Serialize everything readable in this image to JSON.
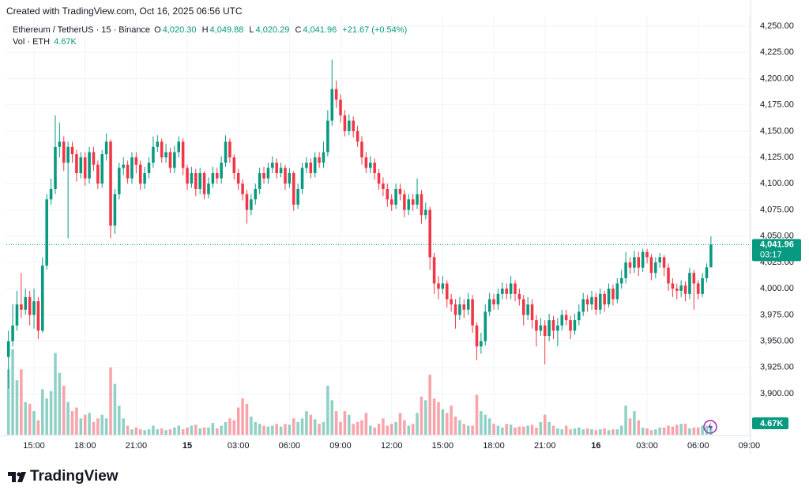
{
  "header": {
    "created": "Created with TradingView.com, Oct 16, 2025 06:56 UTC",
    "symbol": "Ethereum / TetherUS · 15 · Binance",
    "ohlc_keys": [
      "O",
      "H",
      "L",
      "C"
    ],
    "change": "+21.67 (+0.54%)",
    "volume_title": "Vol · ETH"
  },
  "chart_data": {
    "type": "candlestick",
    "up_color": "#089981",
    "down_color": "#f23645",
    "grid": true,
    "last_labels": {
      "open": "4,020.30",
      "high": "4,049.88",
      "low": "4,020.29",
      "close": "4,041.96"
    },
    "countdown": "03:17",
    "volume_last_label": "4.67K",
    "xlim": [
      -0.5,
      174.3
    ],
    "ylim": [
      3860.9,
      4259.8
    ],
    "volume_lim": [
      0,
      100000
    ],
    "xticks": [
      {
        "value": 6,
        "label": "15:00"
      },
      {
        "value": 18,
        "label": "18:00"
      },
      {
        "value": 30,
        "label": "21:00"
      },
      {
        "value": 42,
        "label": "15"
      },
      {
        "value": 54,
        "label": "03:00"
      },
      {
        "value": 66,
        "label": "06:00"
      },
      {
        "value": 78,
        "label": "09:00"
      },
      {
        "value": 90,
        "label": "12:00"
      },
      {
        "value": 102,
        "label": "15:00"
      },
      {
        "value": 114,
        "label": "18:00"
      },
      {
        "value": 126,
        "label": "21:00"
      },
      {
        "value": 138,
        "label": "16"
      },
      {
        "value": 150,
        "label": "03:00"
      },
      {
        "value": 162,
        "label": "06:00"
      },
      {
        "value": 174,
        "label": "09:00"
      }
    ],
    "yticks": [
      {
        "value": 3900,
        "label": "3,900.00"
      },
      {
        "value": 3925,
        "label": "3,925.00"
      },
      {
        "value": 3950,
        "label": "3,950.00"
      },
      {
        "value": 3975,
        "label": "3,975.00"
      },
      {
        "value": 4000,
        "label": "4,000.00"
      },
      {
        "value": 4025,
        "label": "4,025.00"
      },
      {
        "value": 4050,
        "label": "4,050.00"
      },
      {
        "value": 4075,
        "label": "4,075.00"
      },
      {
        "value": 4100,
        "label": "4,100.00"
      },
      {
        "value": 4125,
        "label": "4,125.00"
      },
      {
        "value": 4150,
        "label": "4,150.00"
      },
      {
        "value": 4175,
        "label": "4,175.00"
      },
      {
        "value": 4200,
        "label": "4,200.00"
      },
      {
        "value": 4225,
        "label": "4,225.00"
      },
      {
        "value": 4250,
        "label": "4,250.00"
      }
    ],
    "open": [
      3935,
      3950,
      3965,
      3985,
      3980,
      3992,
      3975,
      3988,
      3960,
      4022,
      4085,
      4095,
      4135,
      4140,
      4120,
      4135,
      4128,
      4110,
      4125,
      4105,
      4130,
      4118,
      4100,
      4128,
      4140,
      4060,
      4090,
      4115,
      4118,
      4105,
      4125,
      4118,
      4100,
      4110,
      4120,
      4135,
      4140,
      4125,
      4130,
      4115,
      4130,
      4140,
      4115,
      4100,
      4110,
      4095,
      4110,
      4090,
      4100,
      4110,
      4105,
      4120,
      4140,
      4125,
      4110,
      4100,
      4090,
      4075,
      4085,
      4095,
      4110,
      4105,
      4115,
      4120,
      4110,
      4115,
      4100,
      4110,
      4080,
      4095,
      4115,
      4120,
      4110,
      4125,
      4120,
      4130,
      4160,
      4190,
      4180,
      4165,
      4150,
      4160,
      4150,
      4140,
      4125,
      4115,
      4120,
      4110,
      4100,
      4095,
      4085,
      4080,
      4095,
      4090,
      4075,
      4085,
      4080,
      4090,
      4070,
      4075,
      4030,
      4005,
      4000,
      4005,
      3990,
      3985,
      3975,
      3985,
      3980,
      3990,
      3965,
      3945,
      3950,
      3978,
      3990,
      3985,
      3995,
      4000,
      3995,
      4005,
      3995,
      3990,
      3975,
      3985,
      3970,
      3960,
      3965,
      3955,
      3970,
      3960,
      3965,
      3975,
      3970,
      3960,
      3970,
      3978,
      3990,
      3985,
      3992,
      3980,
      3995,
      3985,
      4000,
      3990,
      4005,
      4010,
      4025,
      4020,
      4030,
      4020,
      4035,
      4030,
      4015,
      4025,
      4030,
      4020,
      4005,
      4000,
      3998,
      4003,
      3995,
      4015,
      4005,
      3995,
      4010,
      4020.3
    ],
    "high": [
      3960,
      3985,
      3998,
      4015,
      4000,
      3998,
      4000,
      3992,
      4030,
      4090,
      4105,
      4165,
      4158,
      4145,
      4140,
      4140,
      4132,
      4130,
      4130,
      4135,
      4135,
      4122,
      4132,
      4148,
      4142,
      4095,
      4120,
      4125,
      4122,
      4130,
      4130,
      4122,
      4116,
      4125,
      4145,
      4146,
      4143,
      4138,
      4134,
      4136,
      4145,
      4143,
      4118,
      4116,
      4114,
      4115,
      4112,
      4106,
      4116,
      4115,
      4126,
      4146,
      4143,
      4128,
      4114,
      4104,
      4094,
      4090,
      4100,
      4115,
      4116,
      4120,
      4126,
      4124,
      4120,
      4118,
      4115,
      4112,
      4100,
      4120,
      4125,
      4124,
      4130,
      4130,
      4140,
      4170,
      4218,
      4198,
      4185,
      4170,
      4166,
      4164,
      4155,
      4145,
      4130,
      4126,
      4124,
      4114,
      4106,
      4100,
      4090,
      4100,
      4100,
      4094,
      4090,
      4090,
      4105,
      4094,
      4082,
      4078,
      4034,
      4012,
      4012,
      4008,
      3995,
      3990,
      3992,
      3990,
      3996,
      3994,
      3968,
      3958,
      3985,
      3996,
      3995,
      4000,
      4006,
      4005,
      4012,
      4008,
      4000,
      3994,
      3992,
      3990,
      3975,
      3972,
      3970,
      3976,
      3974,
      3972,
      3980,
      3980,
      3974,
      3976,
      3985,
      3996,
      3994,
      3998,
      3996,
      4000,
      3998,
      4005,
      4004,
      4010,
      4018,
      4035,
      4030,
      4036,
      4035,
      4038,
      4038,
      4033,
      4030,
      4034,
      4032,
      4024,
      4010,
      4005,
      4008,
      4007,
      4020,
      4018,
      4008,
      4015,
      4024,
      4049.88
    ],
    "low": [
      3905,
      3945,
      3960,
      3972,
      3975,
      3965,
      3962,
      3952,
      3958,
      4018,
      4080,
      4090,
      4125,
      4112,
      4048,
      4120,
      4102,
      4105,
      4098,
      4100,
      4112,
      4095,
      4096,
      4122,
      4048,
      4052,
      4085,
      4108,
      4100,
      4100,
      4110,
      4094,
      4095,
      4105,
      4115,
      4130,
      4120,
      4120,
      4110,
      4110,
      4125,
      4108,
      4094,
      4096,
      4088,
      4090,
      4085,
      4086,
      4096,
      4100,
      4100,
      4116,
      4120,
      4104,
      4094,
      4084,
      4062,
      4070,
      4080,
      4090,
      4100,
      4100,
      4110,
      4105,
      4106,
      4094,
      4096,
      4074,
      4076,
      4090,
      4110,
      4105,
      4106,
      4115,
      4115,
      4126,
      4155,
      4172,
      4158,
      4145,
      4146,
      4144,
      4135,
      4118,
      4110,
      4110,
      4104,
      4094,
      4088,
      4078,
      4074,
      4076,
      4084,
      4068,
      4070,
      4074,
      4076,
      4062,
      4066,
      4018,
      3995,
      3990,
      3995,
      3982,
      3978,
      3962,
      3970,
      3972,
      3975,
      3958,
      3932,
      3938,
      3946,
      3974,
      3980,
      3980,
      3990,
      3990,
      3990,
      3988,
      3984,
      3965,
      3970,
      3962,
      3945,
      3955,
      3928,
      3950,
      3952,
      3945,
      3960,
      3965,
      3952,
      3956,
      3965,
      3974,
      3978,
      3980,
      3975,
      3976,
      3978,
      3982,
      3984,
      3986,
      4000,
      4005,
      4014,
      4015,
      4012,
      4016,
      4024,
      4008,
      4010,
      4020,
      4012,
      3998,
      3992,
      3990,
      3992,
      3988,
      3990,
      3980,
      3990,
      3992,
      4006,
      4020.29
    ],
    "close": [
      3950,
      3965,
      3985,
      3980,
      3992,
      3975,
      3988,
      3960,
      4022,
      4085,
      4095,
      4135,
      4140,
      4120,
      4135,
      4128,
      4110,
      4125,
      4105,
      4130,
      4118,
      4100,
      4128,
      4140,
      4060,
      4090,
      4115,
      4118,
      4105,
      4125,
      4118,
      4100,
      4110,
      4120,
      4135,
      4140,
      4125,
      4130,
      4115,
      4130,
      4140,
      4115,
      4100,
      4110,
      4095,
      4110,
      4090,
      4100,
      4110,
      4105,
      4120,
      4140,
      4125,
      4110,
      4100,
      4090,
      4075,
      4085,
      4095,
      4110,
      4105,
      4115,
      4120,
      4110,
      4115,
      4100,
      4110,
      4080,
      4095,
      4115,
      4120,
      4110,
      4125,
      4120,
      4130,
      4160,
      4190,
      4180,
      4165,
      4150,
      4160,
      4150,
      4140,
      4125,
      4115,
      4120,
      4110,
      4100,
      4095,
      4085,
      4080,
      4095,
      4090,
      4075,
      4085,
      4080,
      4090,
      4070,
      4075,
      4030,
      4005,
      4000,
      4005,
      3990,
      3985,
      3975,
      3985,
      3980,
      3990,
      3965,
      3945,
      3950,
      3978,
      3990,
      3985,
      3995,
      4000,
      3995,
      4005,
      3995,
      3990,
      3975,
      3985,
      3970,
      3960,
      3965,
      3955,
      3970,
      3960,
      3965,
      3975,
      3970,
      3960,
      3970,
      3978,
      3990,
      3985,
      3992,
      3980,
      3995,
      3985,
      4000,
      3990,
      4005,
      4010,
      4025,
      4020,
      4030,
      4020,
      4035,
      4030,
      4015,
      4025,
      4030,
      4020,
      4005,
      4000,
      3998,
      4003,
      3995,
      4015,
      4005,
      3995,
      4010,
      4020.3,
      4041.96
    ],
    "volume": [
      36000,
      47000,
      30000,
      36000,
      18000,
      17000,
      13000,
      8000,
      25000,
      20000,
      24000,
      45000,
      34000,
      27000,
      18000,
      13000,
      15000,
      9000,
      11000,
      12000,
      7000,
      9000,
      11000,
      9000,
      37000,
      28000,
      16000,
      9000,
      5000,
      3000,
      4000,
      3000,
      2500,
      3000,
      5000,
      3000,
      3500,
      2500,
      3000,
      4000,
      5000,
      3000,
      4000,
      5000,
      5500,
      3500,
      4000,
      4000,
      6500,
      3500,
      5000,
      7000,
      9000,
      8000,
      15000,
      20000,
      17000,
      10000,
      7000,
      6000,
      5000,
      4500,
      5000,
      6000,
      4500,
      6000,
      5500,
      9000,
      7000,
      9000,
      13000,
      11000,
      8500,
      6000,
      7000,
      27000,
      19000,
      13000,
      7000,
      13000,
      11000,
      6000,
      7000,
      8000,
      12000,
      5000,
      4000,
      6000,
      9000,
      5000,
      6000,
      7000,
      12000,
      8000,
      5000,
      6000,
      12000,
      21000,
      19000,
      33000,
      20000,
      18000,
      14000,
      12000,
      16000,
      10000,
      8000,
      6000,
      5000,
      5000,
      22000,
      13000,
      11000,
      9000,
      6000,
      5000,
      4000,
      6000,
      5500,
      4000,
      4500,
      4500,
      5000,
      5500,
      4000,
      7000,
      11000,
      7000,
      5000,
      3500,
      3000,
      5000,
      3000,
      3500,
      4000,
      3000,
      3500,
      3000,
      2500,
      3000,
      3500,
      2500,
      3000,
      3000,
      5000,
      16000,
      9000,
      13000,
      8000,
      4000,
      3500,
      2500,
      3000,
      4000,
      4000,
      5000,
      4500,
      5500,
      6000,
      6000,
      3500,
      4000,
      4000,
      5000,
      5000,
      4670
    ]
  },
  "footer": {
    "logo": "TradingView"
  }
}
